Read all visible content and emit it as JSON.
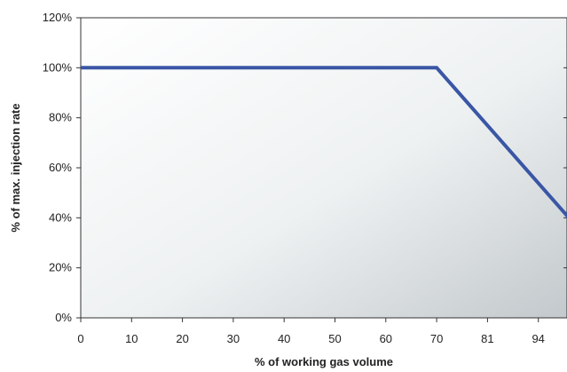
{
  "chart_data": {
    "type": "line",
    "xlabel": "% of working gas volume",
    "ylabel": "% of max. injection rate",
    "x_tick_labels": [
      "0",
      "10",
      "20",
      "30",
      "40",
      "50",
      "60",
      "70",
      "81",
      "94"
    ],
    "y_tick_labels": [
      "0%",
      "20%",
      "40%",
      "60%",
      "80%",
      "100%",
      "120%"
    ],
    "ylim": [
      0,
      120
    ],
    "grid": false,
    "series": [
      {
        "color": "#3a56a5",
        "points": [
          {
            "x_position": 0,
            "y": 100
          },
          {
            "x_position": 7,
            "y": 100
          },
          {
            "x_position": 9.6,
            "y": 40
          }
        ]
      }
    ]
  }
}
